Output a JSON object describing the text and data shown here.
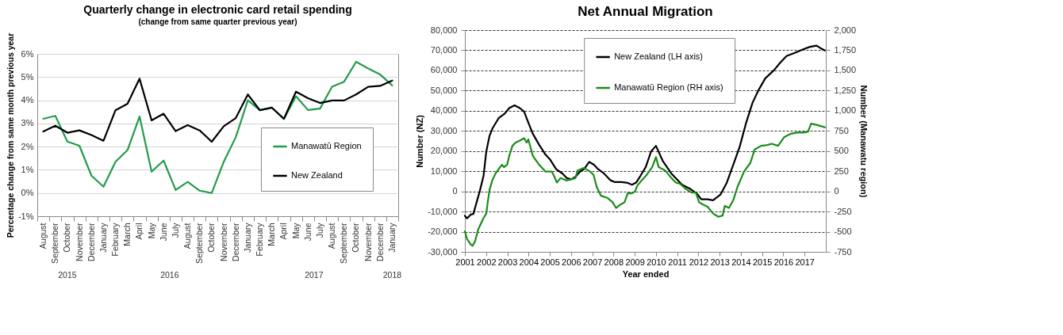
{
  "chart_data": [
    {
      "type": "line",
      "title": "Quarterly change in electronic card retail spending",
      "subtitle": "(change from same quarter previous year)",
      "ylabel": "Percentage change from same month previous year",
      "categories": [
        "August",
        "September",
        "October",
        "November",
        "December",
        "January",
        "February",
        "March",
        "April",
        "May",
        "June",
        "July",
        "August",
        "September",
        "October",
        "November",
        "December",
        "January",
        "February",
        "March",
        "April",
        "May",
        "June",
        "July",
        "August",
        "September",
        "October",
        "November",
        "December",
        "January"
      ],
      "series": [
        {
          "name": "Manawatū Region",
          "color": "#239b4b",
          "values": [
            3.2,
            3.33,
            2.22,
            2.04,
            0.75,
            0.27,
            1.35,
            1.85,
            3.3,
            0.92,
            1.4,
            0.13,
            0.48,
            0.1,
            0,
            1.35,
            2.41,
            4.0,
            3.57,
            3.68,
            3.19,
            4.17,
            3.58,
            3.64,
            4.58,
            4.8,
            5.66,
            5.37,
            5.11,
            4.64
          ]
        },
        {
          "name": "New Zealand",
          "color": "#000000",
          "values": [
            2.65,
            2.9,
            2.6,
            2.7,
            2.5,
            2.25,
            3.57,
            3.85,
            4.93,
            3.13,
            3.42,
            2.67,
            2.93,
            2.7,
            2.21,
            2.88,
            3.23,
            4.25,
            3.57,
            3.68,
            3.2,
            4.37,
            4.09,
            3.88,
            3.99,
            3.99,
            4.25,
            4.58,
            4.62,
            4.85
          ]
        }
      ],
      "ylim": [
        -1,
        6
      ],
      "yticks": [
        {
          "value": -1,
          "label": "-1%"
        },
        {
          "value": 0,
          "label": "0%"
        },
        {
          "value": 1,
          "label": "1%"
        },
        {
          "value": 2,
          "label": "2%"
        },
        {
          "value": 3,
          "label": "3%"
        },
        {
          "value": 4,
          "label": "4%"
        },
        {
          "value": 5,
          "label": "5%"
        },
        {
          "value": 6,
          "label": "6%"
        }
      ],
      "grid": "y",
      "legend": "bottom right",
      "annotations": [
        "2015",
        "2016",
        "2017",
        "2018"
      ]
    },
    {
      "type": "line",
      "title": "Net Annual Migration",
      "xlabel": "Year ended",
      "ylabel": "Number (NZ)",
      "y2label": "Number (Manawatu region)",
      "series": [
        {
          "name": "New Zealand (LH axis)",
          "color": "#000000",
          "x": [
            2001.0,
            2001.1,
            2001.28,
            2001.4,
            2001.58,
            2001.7,
            2001.88,
            2002.01,
            2002.16,
            2002.31,
            2002.59,
            2002.87,
            2003.09,
            2003.34,
            2003.59,
            2003.79,
            2003.99,
            2004.2,
            2004.5,
            2004.8,
            2005.0,
            2005.3,
            2005.6,
            2005.8,
            2006.01,
            2006.21,
            2006.41,
            2006.61,
            2006.86,
            2007.08,
            2007.28,
            2007.56,
            2007.86,
            2008.07,
            2008.37,
            2008.67,
            2008.87,
            2009.07,
            2009.27,
            2009.52,
            2009.77,
            2010.0,
            2010.33,
            2010.73,
            2011.23,
            2011.63,
            2011.93,
            2012.13,
            2012.43,
            2012.69,
            2013.04,
            2013.34,
            2013.64,
            2013.94,
            2014.25,
            2014.55,
            2014.85,
            2015.15,
            2015.55,
            2015.85,
            2016.15,
            2016.56,
            2016.96,
            2017.26,
            2017.56,
            2017.76,
            2017.96
          ],
          "values": [
            -12100,
            -13400,
            -11500,
            -11200,
            -4400,
            0,
            7700,
            19800,
            27500,
            31400,
            36300,
            38500,
            41300,
            42700,
            41300,
            39600,
            34100,
            28600,
            23100,
            18200,
            16000,
            11000,
            8800,
            6600,
            6000,
            7200,
            9700,
            11000,
            14600,
            13200,
            11000,
            8800,
            5500,
            4600,
            4600,
            4200,
            3300,
            4400,
            7700,
            12100,
            19800,
            22600,
            14900,
            8800,
            3300,
            1100,
            -1100,
            -3900,
            -3900,
            -4400,
            -1600,
            4400,
            13200,
            22000,
            34100,
            44000,
            50600,
            56100,
            60000,
            63800,
            67100,
            68800,
            70600,
            71700,
            72300,
            71000,
            69900
          ]
        },
        {
          "name": "Manawatū Region (RH axis)",
          "color": "#1a8c1a",
          "axis": "y2",
          "x": [
            2001.0,
            2001.1,
            2001.28,
            2001.36,
            2001.48,
            2001.63,
            2001.88,
            2002.01,
            2002.09,
            2002.16,
            2002.29,
            2002.44,
            2002.59,
            2002.74,
            2002.84,
            2002.99,
            2003.09,
            2003.24,
            2003.39,
            2003.59,
            2003.79,
            2003.91,
            2003.99,
            2004.2,
            2004.5,
            2004.8,
            2005.1,
            2005.2,
            2005.33,
            2005.5,
            2005.8,
            2006.01,
            2006.21,
            2006.31,
            2006.61,
            2006.91,
            2007.06,
            2007.21,
            2007.41,
            2007.71,
            2007.96,
            2008.12,
            2008.32,
            2008.52,
            2008.67,
            2008.87,
            2009.02,
            2009.12,
            2009.32,
            2009.52,
            2009.82,
            2010.0,
            2010.13,
            2010.43,
            2010.73,
            2010.93,
            2011.13,
            2011.43,
            2011.68,
            2011.88,
            2012.03,
            2012.23,
            2012.43,
            2012.69,
            2012.94,
            2013.14,
            2013.24,
            2013.44,
            2013.64,
            2013.84,
            2014.15,
            2014.45,
            2014.65,
            2014.95,
            2015.25,
            2015.45,
            2015.75,
            2016.05,
            2016.36,
            2016.66,
            2016.96,
            2017.16,
            2017.31,
            2017.56,
            2017.76,
            2017.96
          ],
          "values": [
            -495,
            -590,
            -660,
            -675,
            -620,
            -470,
            -330,
            -275,
            -110,
            15,
            135,
            220,
            275,
            330,
            300,
            330,
            440,
            565,
            605,
            630,
            660,
            605,
            645,
            440,
            330,
            245,
            245,
            190,
            110,
            165,
            135,
            150,
            165,
            260,
            290,
            245,
            205,
            55,
            -55,
            -80,
            -135,
            -205,
            -165,
            -135,
            -25,
            -25,
            0,
            70,
            135,
            190,
            300,
            425,
            300,
            260,
            165,
            110,
            95,
            25,
            -15,
            -15,
            -135,
            -165,
            -190,
            -275,
            -315,
            -300,
            -180,
            -205,
            -110,
            55,
            245,
            355,
            520,
            565,
            575,
            590,
            565,
            675,
            715,
            730,
            730,
            740,
            840,
            825,
            810,
            795
          ]
        }
      ],
      "xlim": [
        2001,
        2018
      ],
      "xticks": [
        2001,
        2002,
        2003,
        2004,
        2005,
        2006,
        2007,
        2008,
        2009,
        2010,
        2011,
        2012,
        2013,
        2014,
        2015,
        2016,
        2017
      ],
      "ylim": [
        -30000,
        80000
      ],
      "yticks": [
        {
          "value": -30000,
          "label": "-30,000"
        },
        {
          "value": -20000,
          "label": "-20,000"
        },
        {
          "value": -10000,
          "label": "-10,000"
        },
        0,
        {
          "value": 10000,
          "label": "10,000"
        },
        {
          "value": 20000,
          "label": "20,000"
        },
        {
          "value": 30000,
          "label": "30,000"
        },
        {
          "value": 40000,
          "label": "40,000"
        },
        {
          "value": 50000,
          "label": "50,000"
        },
        {
          "value": 60000,
          "label": "60,000"
        },
        {
          "value": 70000,
          "label": "70,000"
        },
        {
          "value": 80000,
          "label": "80,000"
        }
      ],
      "y2lim": [
        -750,
        2000
      ],
      "y2ticks": [
        -750,
        -500,
        -250,
        0,
        250,
        500,
        750,
        {
          "value": 1000,
          "label": "1,000"
        },
        {
          "value": 1250,
          "label": "1,250"
        },
        {
          "value": 1500,
          "label": "1,500"
        },
        {
          "value": 1750,
          "label": "1,750"
        },
        {
          "value": 2000,
          "label": "2,000"
        }
      ],
      "grid": "y",
      "legend": "top"
    }
  ]
}
